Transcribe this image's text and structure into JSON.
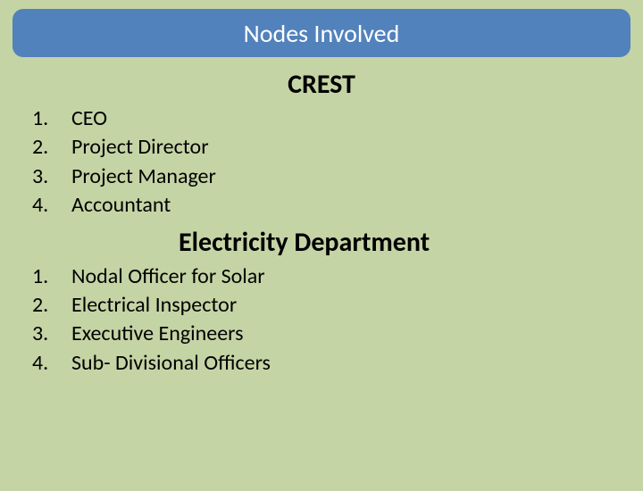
{
  "title": "Nodes Involved",
  "sections": [
    {
      "heading": "CREST",
      "heading_class": "crest",
      "items": [
        {
          "num": "1.",
          "label": "CEO"
        },
        {
          "num": "2.",
          "label": "Project Director"
        },
        {
          "num": "3.",
          "label": "Project Manager"
        },
        {
          "num": "4.",
          "label": "Accountant"
        }
      ]
    },
    {
      "heading": "Electricity Department",
      "heading_class": "dept",
      "items": [
        {
          "num": "1.",
          "label": "Nodal Officer for Solar"
        },
        {
          "num": "2.",
          "label": "Electrical Inspector"
        },
        {
          "num": "3.",
          "label": "Executive Engineers"
        },
        {
          "num": "4.",
          "label": "Sub- Divisional Officers"
        }
      ]
    }
  ],
  "colors": {
    "background": "#c5d4a5",
    "title_bar": "#5282bb",
    "title_text": "#ffffff",
    "body_text": "#000000"
  },
  "typography": {
    "title_fontsize": 28,
    "heading_fontsize": 30,
    "list_fontsize": 24,
    "font_family": "Calibri"
  }
}
